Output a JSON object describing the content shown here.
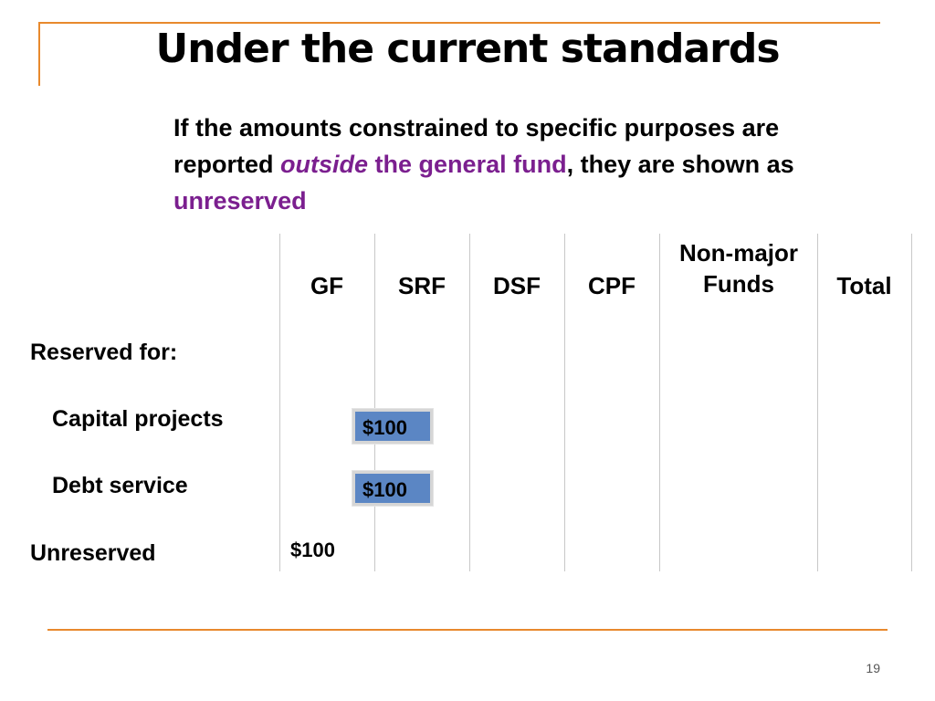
{
  "title": "Under the current standards",
  "subtitle": {
    "p1": "If the amounts constrained to specific purposes are reported ",
    "outside": "outside",
    "p2": " the general fund",
    "p3": ", they are shown as ",
    "unreserved": "unreserved"
  },
  "columns": {
    "gf": "GF",
    "srf": "SRF",
    "dsf": "DSF",
    "cpf": "CPF",
    "nonmajor": "Non-major Funds",
    "total": "Total"
  },
  "rows": {
    "reserved_for": "Reserved for:",
    "capital_projects": "Capital projects",
    "debt_service": "Debt service",
    "unreserved": "Unreserved"
  },
  "values": {
    "capital_projects_box": "$100",
    "debt_service_box": "$100",
    "unreserved_gf": "$100"
  },
  "page_number": "19",
  "colors": {
    "accent_orange": "#E8892D",
    "highlight_purple": "#7B1F8F",
    "box_blue": "#5B86C4"
  }
}
